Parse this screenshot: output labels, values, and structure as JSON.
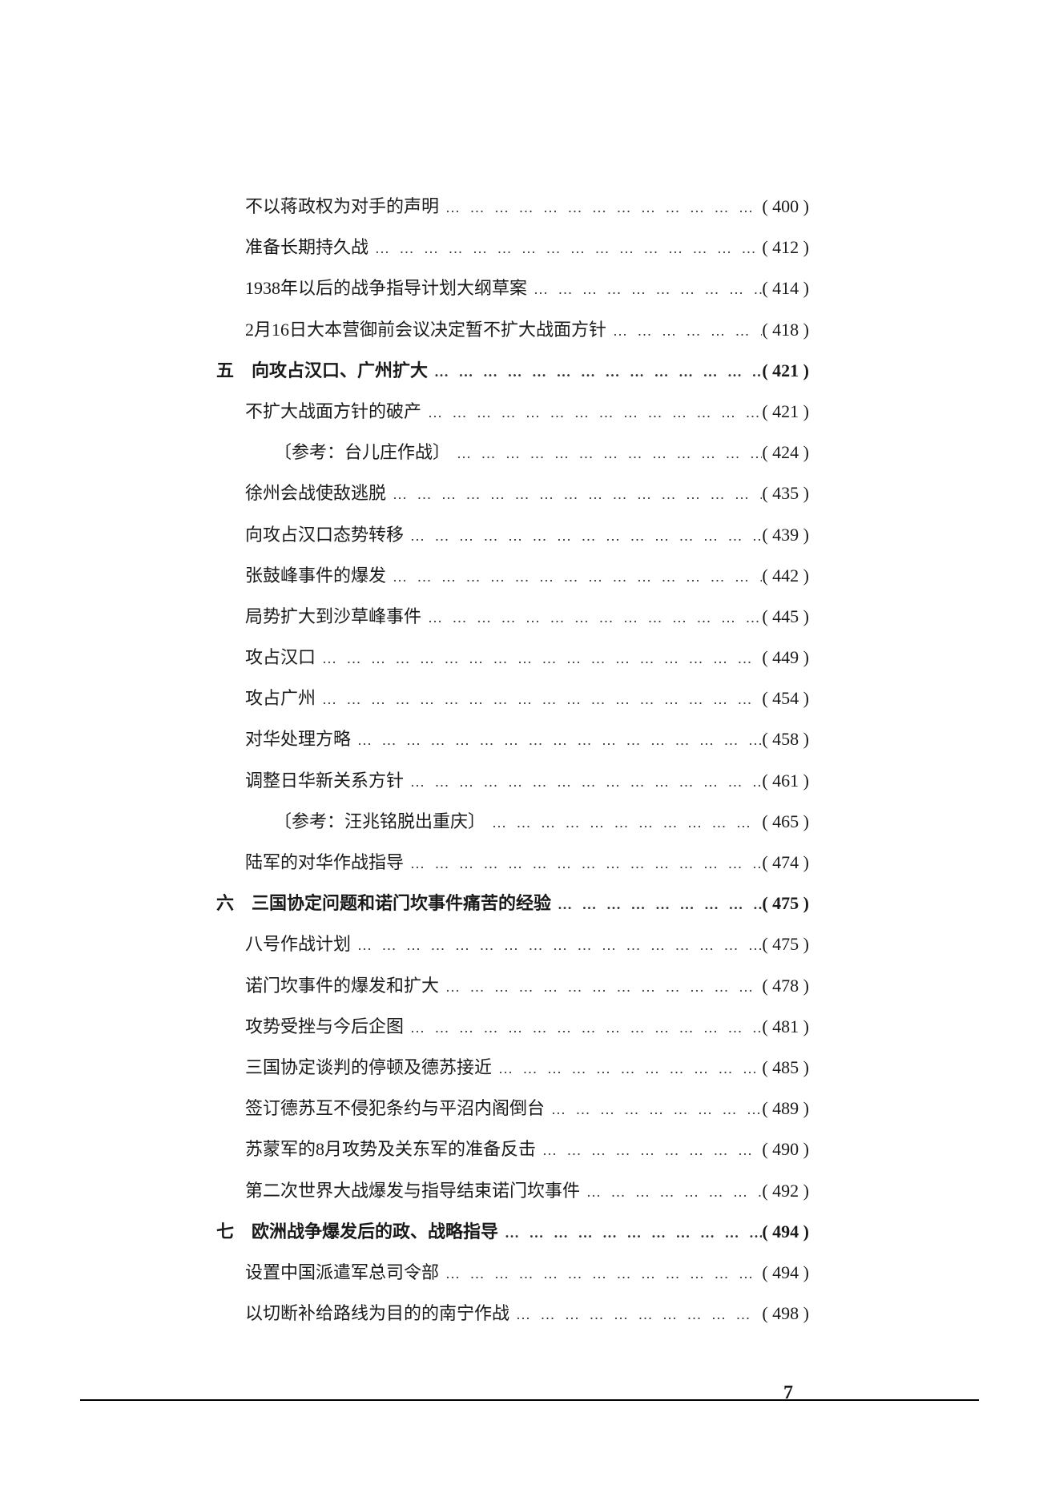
{
  "page_number": "7",
  "entries": [
    {
      "indent": 1,
      "title": "不以蒋政权为对手的声明",
      "page": "( 400 )",
      "section": false
    },
    {
      "indent": 1,
      "title": "准备长期持久战",
      "page": "( 412 )",
      "section": false
    },
    {
      "indent": 1,
      "title": "1938年以后的战争指导计划大纲草案",
      "page": "( 414 )",
      "section": false
    },
    {
      "indent": 1,
      "title": "2月16日大本营御前会议决定暂不扩大战面方针",
      "page": "( 418 )",
      "section": false
    },
    {
      "indent": 0,
      "title": "五　向攻占汉口、广州扩大",
      "page": "( 421 )",
      "section": true
    },
    {
      "indent": 1,
      "title": "不扩大战面方针的破产",
      "page": "( 421 )",
      "section": false
    },
    {
      "indent": 2,
      "title": "〔参考：台儿庄作战〕",
      "page": "( 424 )",
      "section": false
    },
    {
      "indent": 1,
      "title": "徐州会战使敌逃脱",
      "page": "( 435 )",
      "section": false
    },
    {
      "indent": 1,
      "title": "向攻占汉口态势转移",
      "page": "( 439 )",
      "section": false
    },
    {
      "indent": 1,
      "title": "张鼓峰事件的爆发",
      "page": "( 442 )",
      "section": false
    },
    {
      "indent": 1,
      "title": "局势扩大到沙草峰事件",
      "page": "( 445 )",
      "section": false
    },
    {
      "indent": 1,
      "title": "攻占汉口",
      "page": "( 449 )",
      "section": false
    },
    {
      "indent": 1,
      "title": "攻占广州",
      "page": "( 454 )",
      "section": false
    },
    {
      "indent": 1,
      "title": "对华处理方略",
      "page": "( 458 )",
      "section": false
    },
    {
      "indent": 1,
      "title": "调整日华新关系方针",
      "page": "( 461 )",
      "section": false
    },
    {
      "indent": 2,
      "title": "〔参考：汪兆铭脱出重庆〕",
      "page": "( 465 )",
      "section": false
    },
    {
      "indent": 1,
      "title": "陆军的对华作战指导",
      "page": "( 474 )",
      "section": false
    },
    {
      "indent": 0,
      "title": "六　三国协定问题和诺门坎事件痛苦的经验",
      "page": "( 475 )",
      "section": true
    },
    {
      "indent": 1,
      "title": "八号作战计划",
      "page": "( 475 )",
      "section": false
    },
    {
      "indent": 1,
      "title": "诺门坎事件的爆发和扩大",
      "page": "( 478 )",
      "section": false
    },
    {
      "indent": 1,
      "title": "攻势受挫与今后企图",
      "page": "( 481 )",
      "section": false
    },
    {
      "indent": 1,
      "title": "三国协定谈判的停顿及德苏接近",
      "page": "( 485 )",
      "section": false
    },
    {
      "indent": 1,
      "title": "签订德苏互不侵犯条约与平沼内阁倒台",
      "page": "( 489 )",
      "section": false
    },
    {
      "indent": 1,
      "title": "苏蒙军的8月攻势及关东军的准备反击",
      "page": "( 490 )",
      "section": false
    },
    {
      "indent": 1,
      "title": "第二次世界大战爆发与指导结束诺门坎事件",
      "page": "( 492 )",
      "section": false
    },
    {
      "indent": 0,
      "title": "七　欧洲战争爆发后的政、战略指导",
      "page": "( 494 )",
      "section": true
    },
    {
      "indent": 1,
      "title": "设置中国派遣军总司令部",
      "page": "( 494 )",
      "section": false
    },
    {
      "indent": 1,
      "title": "以切断补给路线为目的的南宁作战",
      "page": "( 498 )",
      "section": false
    }
  ],
  "dots": "… … … … … … … … … … … … … … … … … … … … … … … … … … … … … … … … … … … …"
}
